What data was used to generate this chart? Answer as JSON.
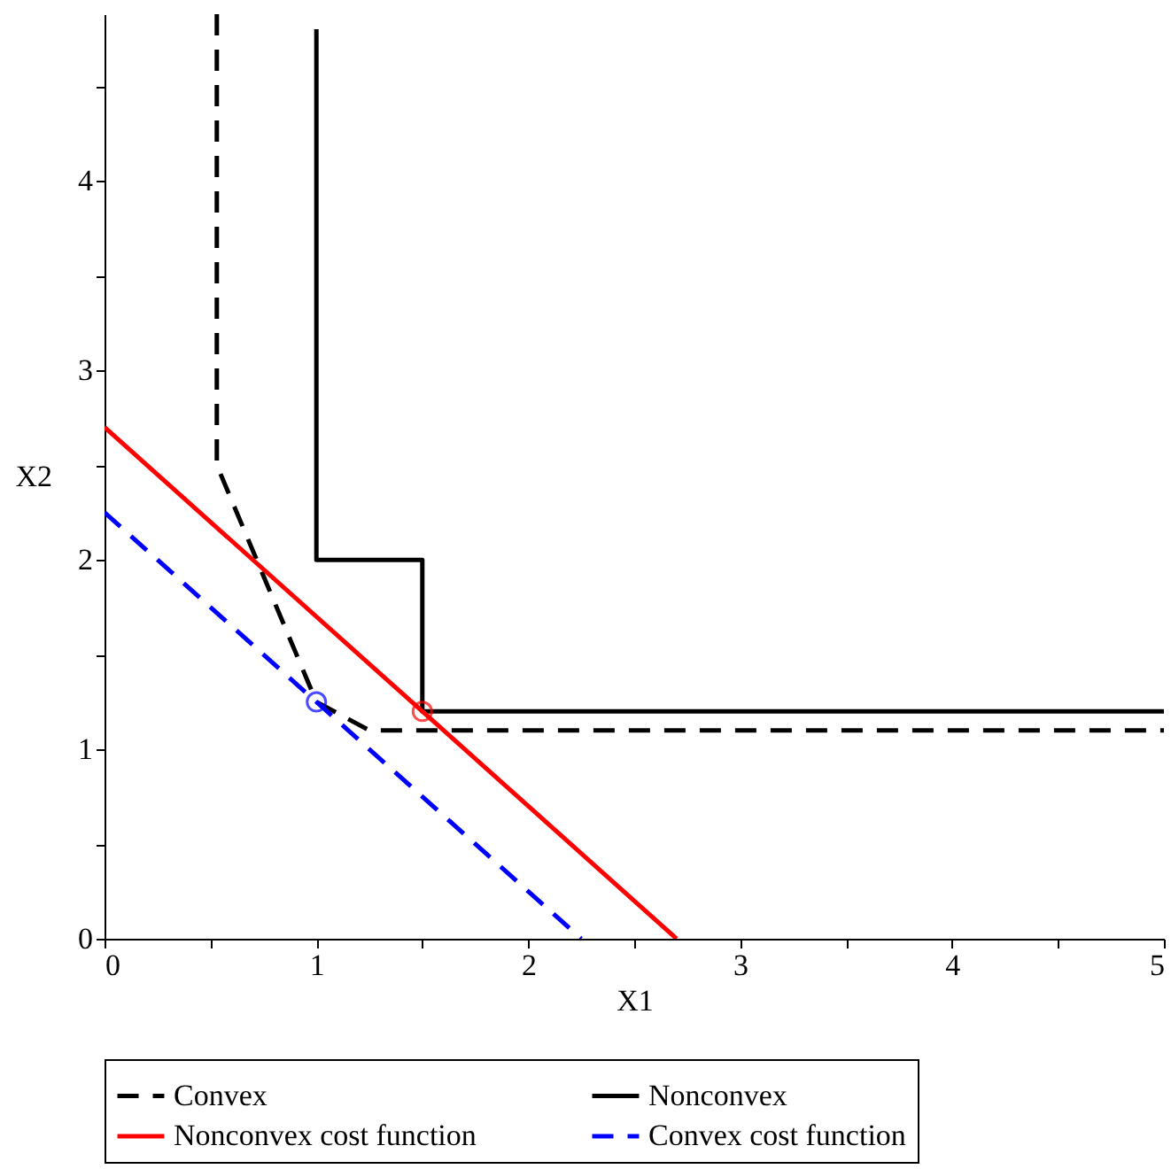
{
  "chart_data": {
    "type": "line",
    "xlabel": "X1",
    "ylabel": "X2",
    "xlim": [
      0,
      5
    ],
    "ylim": [
      0,
      4.88
    ],
    "xticks": [
      0,
      {
        "value": 0.5,
        "label": null
      },
      1,
      {
        "value": 1.5,
        "label": null
      },
      2,
      {
        "value": 2.5,
        "label": null
      },
      3,
      {
        "value": 3.5,
        "label": null
      },
      4,
      {
        "value": 4.5,
        "label": null
      },
      5
    ],
    "yticks": [
      0,
      {
        "value": 0.5,
        "label": null
      },
      1,
      {
        "value": 1.5,
        "label": null
      },
      2,
      {
        "value": 2.5,
        "label": null
      },
      3,
      {
        "value": 3.5,
        "label": null
      },
      4,
      {
        "value": 4.5,
        "label": null
      }
    ],
    "grid": false,
    "legend": "bottom",
    "series": [
      {
        "name": "Convex",
        "type": "line",
        "line_style": "dashed",
        "color": "#000000",
        "x": [
          0.53,
          0.53,
          1,
          1.25,
          5
        ],
        "values": [
          4.88,
          2.5,
          1.25,
          1.1,
          1.1
        ]
      },
      {
        "name": "Nonconvex",
        "type": "line",
        "line_style": "solid",
        "color": "#000000",
        "x": [
          1,
          1,
          1.5,
          1.5,
          5
        ],
        "values": [
          4.8,
          2,
          2,
          1.2,
          1.2
        ]
      },
      {
        "name": "Nonconvex cost function",
        "type": "line",
        "line_style": "solid",
        "color": "#ff0000",
        "x": [
          0,
          2.7
        ],
        "values": [
          2.7,
          0
        ]
      },
      {
        "name": "Convex cost function",
        "type": "line",
        "line_style": "dashed",
        "color": "#0000ff",
        "x": [
          0,
          2.25
        ],
        "values": [
          2.25,
          0
        ]
      },
      {
        "type": "scatter",
        "marker": "circle",
        "color": "#0000ff",
        "x": [
          1
        ],
        "values": [
          1.25
        ]
      },
      {
        "type": "scatter",
        "marker": "circle",
        "color": "#ff0000",
        "x": [
          1.5
        ],
        "values": [
          1.2
        ]
      }
    ]
  }
}
